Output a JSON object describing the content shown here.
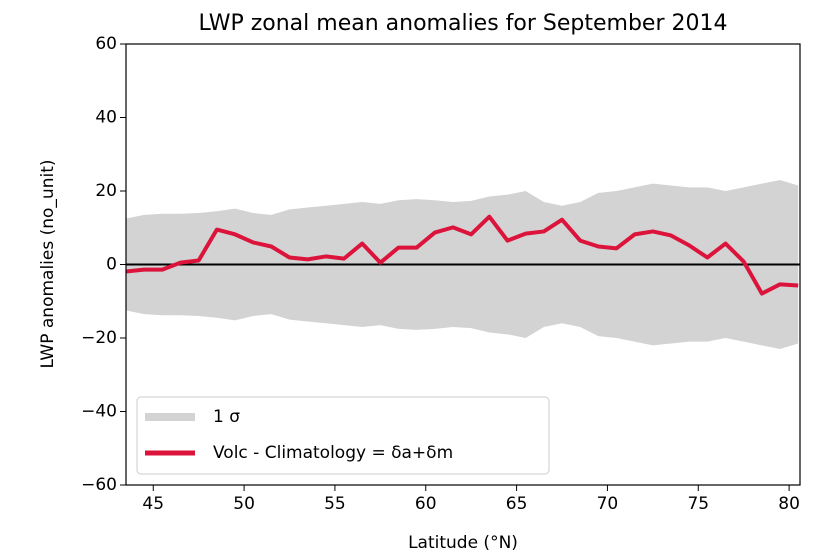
{
  "chart_data": {
    "type": "line",
    "title": "LWP zonal mean anomalies for September 2014",
    "xlabel": "Latitude (°N)",
    "ylabel": "LWP anomalies (no_unit)",
    "x": [
      43.5,
      44.5,
      45.5,
      46.5,
      47.5,
      48.5,
      49.5,
      50.5,
      51.5,
      52.5,
      53.5,
      54.5,
      55.5,
      56.5,
      57.5,
      58.5,
      59.5,
      60.5,
      61.5,
      62.5,
      63.5,
      64.5,
      65.5,
      66.5,
      67.5,
      68.5,
      69.5,
      70.5,
      71.5,
      72.5,
      73.5,
      74.5,
      75.5,
      76.5,
      77.5,
      78.5,
      79.5,
      80.5
    ],
    "series": [
      {
        "name": "1 σ",
        "kind": "band",
        "color": "#d3d3d3",
        "values": [
          12.5,
          13.5,
          13.8,
          13.8,
          14,
          14.5,
          15.2,
          14,
          13.5,
          15,
          15.5,
          16,
          16.5,
          17,
          16.5,
          17.5,
          17.8,
          17.5,
          17,
          17.3,
          18.5,
          19,
          20,
          17,
          16,
          17,
          19.5,
          20,
          21,
          22,
          21.5,
          21,
          21,
          20,
          21,
          22,
          23,
          21.5
        ]
      },
      {
        "name": "Volc - Climatology = δa+δm",
        "kind": "line",
        "color": "#dc143c",
        "values": [
          -1.9,
          -1.4,
          -1.4,
          0.5,
          1.1,
          9.5,
          8.2,
          6,
          4.9,
          1.9,
          1.4,
          2.2,
          1.6,
          5.7,
          0.5,
          4.6,
          4.6,
          8.7,
          10.1,
          8.2,
          13,
          6.5,
          8.4,
          9,
          12.2,
          6.5,
          4.9,
          4.4,
          8.2,
          9,
          7.9,
          5.2,
          1.9,
          5.7,
          0.8,
          -7.9,
          -5.4,
          -5.7
        ]
      }
    ],
    "reference_line": 0,
    "xlim": [
      43.5,
      80.6
    ],
    "ylim": [
      -60,
      60
    ],
    "xticks": [
      45,
      50,
      55,
      60,
      65,
      70,
      75,
      80
    ],
    "yticks": [
      {
        "value": -60,
        "label": "−60"
      },
      {
        "value": -40,
        "label": "−40"
      },
      {
        "value": -20,
        "label": "−20"
      },
      0,
      20,
      40,
      60
    ],
    "legend": "lower left"
  }
}
